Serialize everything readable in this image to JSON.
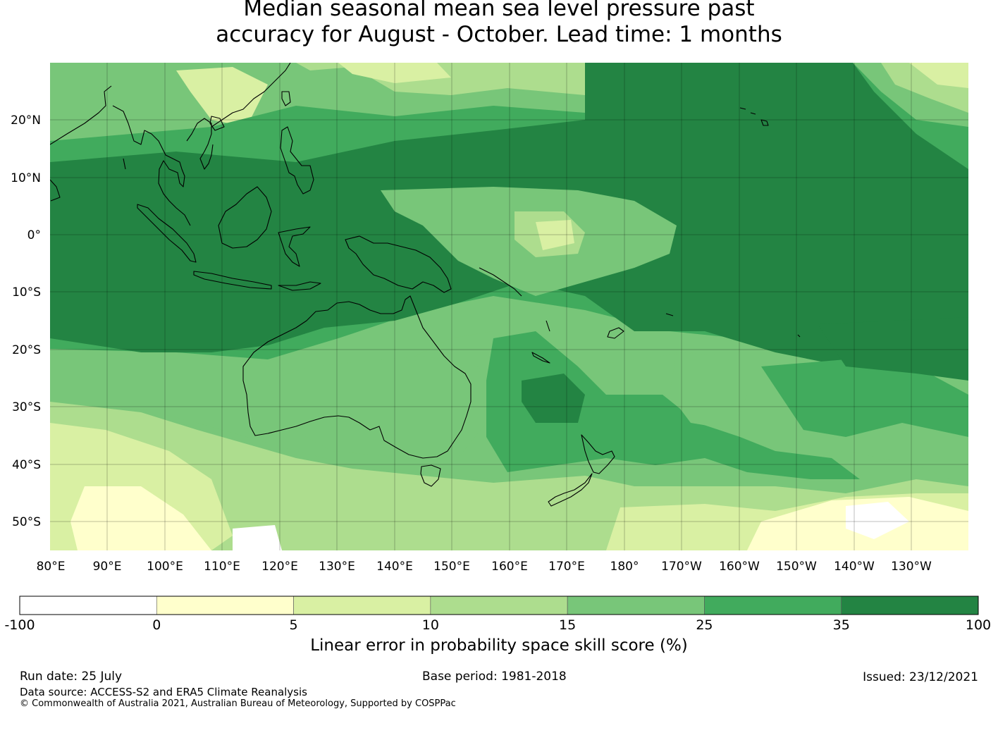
{
  "title": {
    "line1": "Median seasonal mean sea level pressure past",
    "line2": "accuracy for August - October. Lead time: 1 months"
  },
  "map": {
    "lon_labels": [
      "80°E",
      "90°E",
      "100°E",
      "110°E",
      "120°E",
      "130°E",
      "140°E",
      "150°E",
      "160°E",
      "170°E",
      "180°",
      "170°W",
      "160°W",
      "150°W",
      "140°W",
      "130°W"
    ],
    "lat_labels": [
      "20°N",
      "10°N",
      "0°",
      "10°S",
      "20°S",
      "30°S",
      "40°S",
      "50°S"
    ],
    "lon_range": [
      80,
      238
    ],
    "lat_range": [
      -55,
      30
    ],
    "land_outline_color": "#000000",
    "gridlines": true
  },
  "colorbar": {
    "ticks": [
      "-100",
      "0",
      "5",
      "10",
      "15",
      "25",
      "35",
      "100"
    ],
    "colors": [
      "#ffffff",
      "#ffffcc",
      "#d9f0a3",
      "#addd8e",
      "#78c679",
      "#41ab5d",
      "#238443"
    ],
    "label": "Linear error in probability space skill score (%)"
  },
  "footer": {
    "run_date": "Run date: 25 July",
    "base_period": "Base period: 1981-2018",
    "issued": "Issued: 23/12/2021",
    "data_source": "Data source: ACCESS-S2 and ERA5 Climate Reanalysis",
    "copyright": "© Commonwealth of Australia 2021, Australian Bureau of Meteorology, Supported by COSPPac"
  }
}
